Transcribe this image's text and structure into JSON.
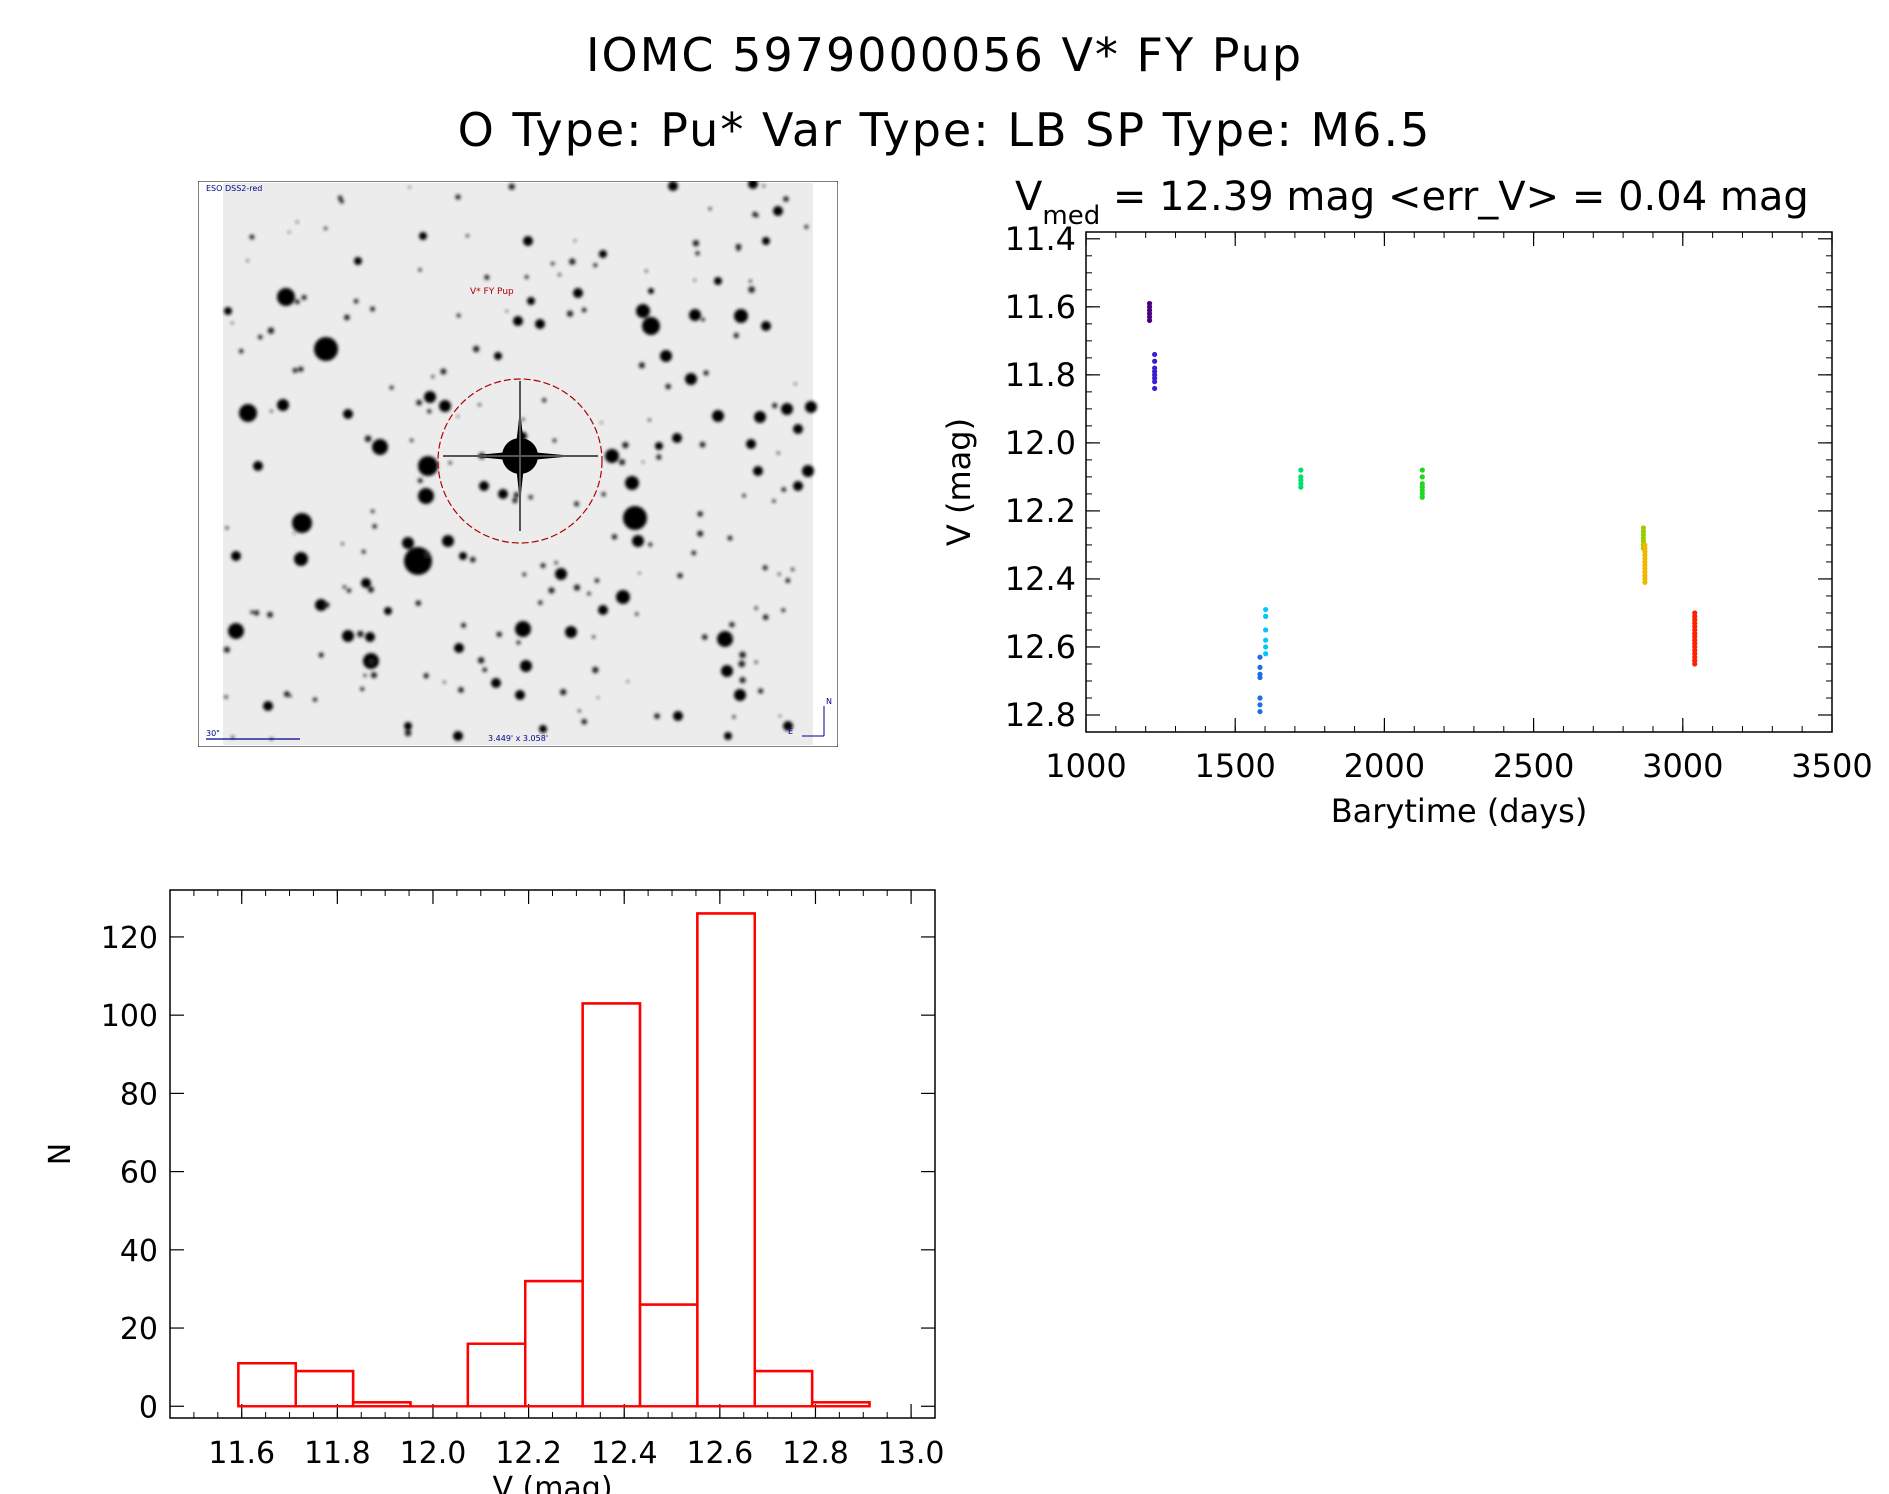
{
  "header": {
    "line1": "IOMC 5979000056    V* FY Pup",
    "line2": "O Type: Pu*  Var Type: LB  SP Type: M6.5"
  },
  "finder": {
    "survey_label": "ESO DSS2-red",
    "target_label": "V* FY Pup",
    "scale_label": "30\"",
    "fov_label": "3.449' x 3.058'",
    "north_label": "N",
    "east_label": "E"
  },
  "lightcurve": {
    "title_main": "V",
    "title_sub": "med",
    "title_rest": " = 12.39 mag <err_V> = 0.04 mag"
  },
  "chart_data": [
    {
      "type": "scatter",
      "title": "V_med = 12.39 mag <err_V> = 0.04 mag",
      "xlabel": "Barytime (days)",
      "ylabel": "V (mag)",
      "xlim": [
        1000,
        3500
      ],
      "ylim": [
        12.85,
        11.38
      ],
      "y_inverted": true,
      "xticks": [
        1000,
        1500,
        2000,
        2500,
        3000,
        3500
      ],
      "yticks": [
        11.4,
        11.6,
        11.8,
        12.0,
        12.2,
        12.4,
        12.6,
        12.8
      ],
      "grid": false,
      "groups": [
        {
          "color": "#4b0082",
          "x": 1213,
          "y": [
            11.59,
            11.6,
            11.61,
            11.62,
            11.63,
            11.64
          ]
        },
        {
          "color": "#3a1fd0",
          "x": 1230,
          "y": [
            11.74,
            11.76,
            11.78,
            11.79,
            11.8,
            11.81,
            11.82,
            11.84
          ]
        },
        {
          "color": "#1e6ee8",
          "x": 1583,
          "y": [
            12.63,
            12.66,
            12.68,
            12.69,
            12.75,
            12.77,
            12.79
          ]
        },
        {
          "color": "#00c8ff",
          "x": 1602,
          "y": [
            12.49,
            12.51,
            12.55,
            12.58,
            12.6,
            12.62
          ]
        },
        {
          "color": "#00e070",
          "x": 1720,
          "y": [
            12.08,
            12.1,
            12.11,
            12.12,
            12.13
          ]
        },
        {
          "color": "#20d820",
          "x": 2127,
          "y": [
            12.08,
            12.1,
            12.12,
            12.13,
            12.14,
            12.15,
            12.16
          ]
        },
        {
          "color": "#9acd00",
          "x": 2868,
          "y": [
            12.25,
            12.26,
            12.27,
            12.28,
            12.29,
            12.3,
            12.31
          ]
        },
        {
          "color": "#f0b800",
          "x": 2873,
          "y": [
            12.3,
            12.31,
            12.32,
            12.33,
            12.34,
            12.35,
            12.36,
            12.37,
            12.38,
            12.39,
            12.4,
            12.41
          ]
        },
        {
          "color": "#ff2000",
          "x": 3040,
          "y": [
            12.5,
            12.51,
            12.52,
            12.53,
            12.54,
            12.55,
            12.56,
            12.57,
            12.58,
            12.59,
            12.6,
            12.61,
            12.62,
            12.63,
            12.64,
            12.65
          ]
        }
      ]
    },
    {
      "type": "bar",
      "subtype": "histogram",
      "xlabel": "V (mag)",
      "ylabel": "N",
      "xlim": [
        11.45,
        13.05
      ],
      "ylim": [
        -3,
        132
      ],
      "xticks": [
        11.6,
        11.8,
        12.0,
        12.2,
        12.4,
        12.6,
        12.8,
        13.0
      ],
      "yticks": [
        0,
        20,
        40,
        60,
        80,
        100,
        120
      ],
      "bar_color": "#ff0000",
      "bin_edges": [
        11.593,
        11.713,
        11.833,
        11.953,
        12.073,
        12.193,
        12.313,
        12.433,
        12.553,
        12.673,
        12.793,
        12.913
      ],
      "values": [
        11,
        9,
        1,
        0,
        16,
        32,
        103,
        26,
        126,
        9,
        1
      ]
    }
  ]
}
